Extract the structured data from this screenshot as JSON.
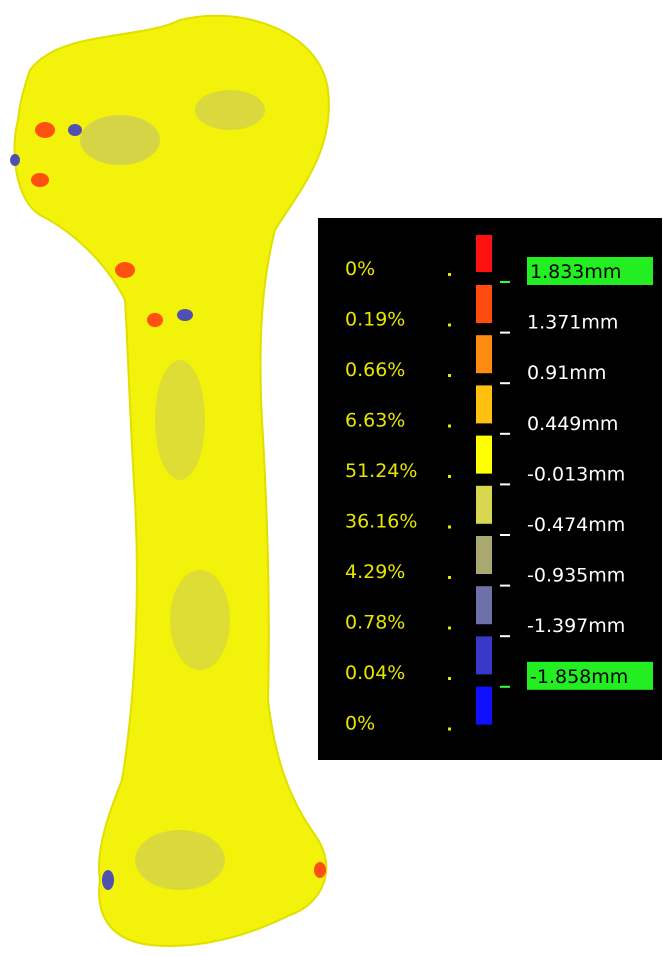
{
  "legend": {
    "percentages": [
      "0%",
      "0.19%",
      "0.66%",
      "6.63%",
      "51.24%",
      "36.16%",
      "4.29%",
      "0.78%",
      "0.04%",
      "0%"
    ],
    "colors": [
      "#ff1010",
      "#ff4a10",
      "#ff8a10",
      "#ffc010",
      "#ffff00",
      "#d8d850",
      "#a8a870",
      "#7070a8",
      "#3838c8",
      "#1010ff"
    ],
    "thresholds": [
      "1.833mm",
      "1.371mm",
      "0.91mm",
      "0.449mm",
      "-0.013mm",
      "-0.474mm",
      "-0.935mm",
      "-1.397mm",
      "-1.858mm"
    ]
  }
}
